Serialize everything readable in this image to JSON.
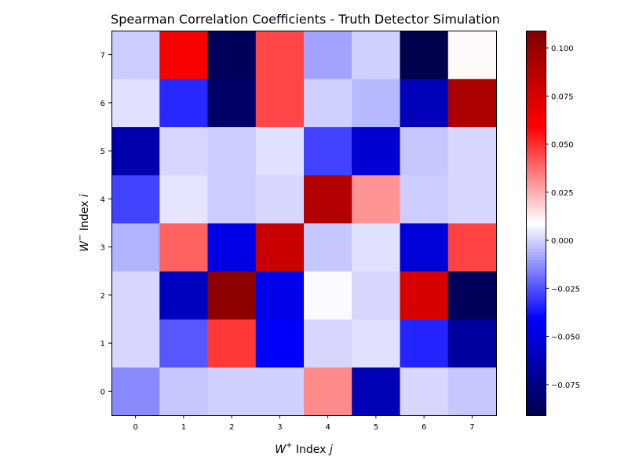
{
  "chart_data": {
    "type": "heatmap",
    "title": "Spearman Correlation Coefficients - Truth Detector Simulation",
    "xlabel_base": "W",
    "xlabel_sup": "+",
    "xlabel_rest": " Index ",
    "xlabel_var": "j",
    "ylabel_base": "W",
    "ylabel_sup": "−",
    "ylabel_rest": " Index ",
    "ylabel_var": "i",
    "x_ticks": [
      "0",
      "1",
      "2",
      "3",
      "4",
      "5",
      "6",
      "7"
    ],
    "y_ticks": [
      "0",
      "1",
      "2",
      "3",
      "4",
      "5",
      "6",
      "7"
    ],
    "colormap": "seismic",
    "vmin": -0.091,
    "vmax": 0.109,
    "colorbar_ticks": [
      {
        "value": 0.1,
        "label": "0.100"
      },
      {
        "value": 0.075,
        "label": "0.075"
      },
      {
        "value": 0.05,
        "label": "0.050"
      },
      {
        "value": 0.025,
        "label": "0.025"
      },
      {
        "value": 0.0,
        "label": "0.000"
      },
      {
        "value": -0.025,
        "label": "−0.025"
      },
      {
        "value": -0.05,
        "label": "−0.050"
      },
      {
        "value": -0.075,
        "label": "−0.075"
      }
    ],
    "rows_i": [
      [
        -0.014,
        -0.002,
        0.0,
        0.0,
        0.032,
        -0.062,
        0.001,
        -0.002
      ],
      [
        0.001,
        -0.024,
        0.048,
        -0.042,
        0.001,
        0.003,
        -0.034,
        -0.068
      ],
      [
        0.001,
        -0.059,
        0.104,
        -0.047,
        0.008,
        0.001,
        0.074,
        -0.087
      ],
      [
        -0.006,
        0.04,
        -0.048,
        0.08,
        -0.002,
        0.003,
        -0.052,
        0.046
      ],
      [
        -0.028,
        0.004,
        -0.001,
        0.001,
        0.089,
        0.03,
        -0.001,
        0.001
      ],
      [
        -0.064,
        0.001,
        -0.001,
        0.003,
        -0.028,
        -0.054,
        -0.002,
        0.001
      ],
      [
        0.003,
        -0.033,
        -0.083,
        0.045,
        0.0,
        -0.005,
        -0.061,
        0.092
      ],
      [
        -0.001,
        0.062,
        -0.087,
        0.045,
        -0.009,
        0.0,
        -0.091,
        0.01
      ]
    ]
  }
}
